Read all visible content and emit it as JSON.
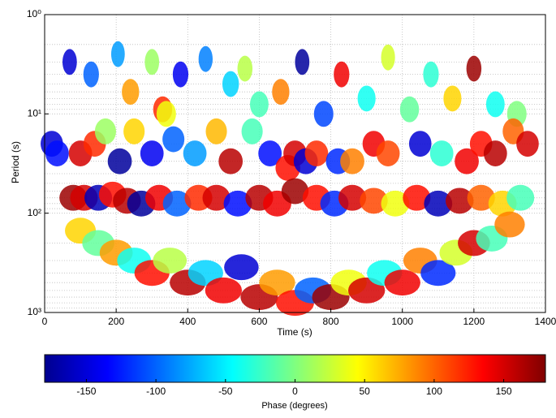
{
  "chart_data": {
    "type": "scatter",
    "xlabel": "Time (s)",
    "ylabel": "Period (s)",
    "colorbar_label": "Phase (degrees)",
    "xlim": [
      0,
      1400
    ],
    "xticks": [
      0,
      200,
      400,
      600,
      800,
      1000,
      1200,
      1400
    ],
    "ylim": [
      1,
      1000
    ],
    "ylog": true,
    "yreverse": true,
    "yticks": [
      {
        "value": 1,
        "label": "10⁰"
      },
      {
        "value": 10,
        "label": "10¹"
      },
      {
        "value": 100,
        "label": "10²"
      },
      {
        "value": 1000,
        "label": "10³"
      }
    ],
    "yminorticks": [
      2,
      3,
      4,
      5,
      6,
      7,
      8,
      9,
      20,
      30,
      40,
      50,
      60,
      70,
      80,
      90,
      200,
      300,
      400,
      500,
      600,
      700,
      800,
      900
    ],
    "grid": true,
    "clim": [
      -180,
      180
    ],
    "cticks": [
      -150,
      -100,
      -50,
      0,
      50,
      100,
      150
    ],
    "x": [
      70,
      130,
      205,
      240,
      300,
      330,
      380,
      450,
      520,
      560,
      600,
      660,
      720,
      780,
      830,
      900,
      960,
      1020,
      1080,
      1140,
      1200,
      1260,
      1320,
      20,
      35,
      100,
      140,
      170,
      210,
      250,
      300,
      340,
      360,
      420,
      480,
      520,
      580,
      630,
      680,
      700,
      730,
      760,
      820,
      860,
      920,
      960,
      1050,
      1110,
      1180,
      1220,
      1260,
      1310,
      1350,
      80,
      110,
      150,
      190,
      230,
      270,
      320,
      370,
      430,
      480,
      540,
      600,
      650,
      700,
      760,
      810,
      860,
      920,
      980,
      1040,
      1100,
      1160,
      1220,
      1280,
      1330,
      100,
      150,
      200,
      250,
      300,
      350,
      400,
      450,
      500,
      550,
      600,
      650,
      700,
      750,
      800,
      850,
      900,
      950,
      1000,
      1050,
      1100,
      1150,
      1200,
      1250,
      1300
    ],
    "y": [
      3,
      4,
      2.5,
      6,
      3,
      9,
      4,
      2.8,
      5,
      3.5,
      8,
      6,
      3,
      10,
      4,
      7,
      2.7,
      9,
      4,
      7,
      3.5,
      8,
      10,
      20,
      25,
      25,
      20,
      15,
      30,
      15,
      25,
      10,
      18,
      25,
      15,
      30,
      15,
      25,
      35,
      25,
      30,
      25,
      30,
      30,
      20,
      25,
      20,
      25,
      30,
      20,
      25,
      15,
      20,
      70,
      70,
      70,
      65,
      75,
      80,
      70,
      80,
      70,
      70,
      80,
      70,
      80,
      60,
      70,
      80,
      70,
      75,
      80,
      70,
      80,
      75,
      70,
      80,
      70,
      150,
      200,
      250,
      300,
      400,
      300,
      500,
      400,
      600,
      350,
      700,
      500,
      800,
      600,
      700,
      500,
      600,
      400,
      500,
      300,
      400,
      250,
      200,
      180,
      130
    ],
    "values": [
      -150,
      -100,
      -80,
      80,
      10,
      120,
      -140,
      -90,
      -60,
      20,
      -20,
      90,
      -170,
      -110,
      140,
      -40,
      30,
      -10,
      -30,
      60,
      170,
      -40,
      0,
      -150,
      -130,
      150,
      120,
      10,
      -170,
      60,
      -140,
      40,
      -100,
      -80,
      70,
      160,
      -20,
      -130,
      130,
      150,
      -150,
      120,
      -120,
      90,
      140,
      110,
      -150,
      -30,
      140,
      130,
      160,
      100,
      150,
      170,
      150,
      -160,
      130,
      160,
      -170,
      140,
      -100,
      120,
      150,
      -130,
      160,
      140,
      170,
      130,
      -120,
      150,
      110,
      40,
      130,
      -160,
      160,
      100,
      60,
      -20,
      60,
      -10,
      80,
      -40,
      130,
      20,
      160,
      -60,
      140,
      -150,
      160,
      80,
      130,
      -100,
      170,
      40,
      150,
      -40,
      140,
      90,
      -120,
      30,
      150,
      -20,
      90
    ]
  }
}
